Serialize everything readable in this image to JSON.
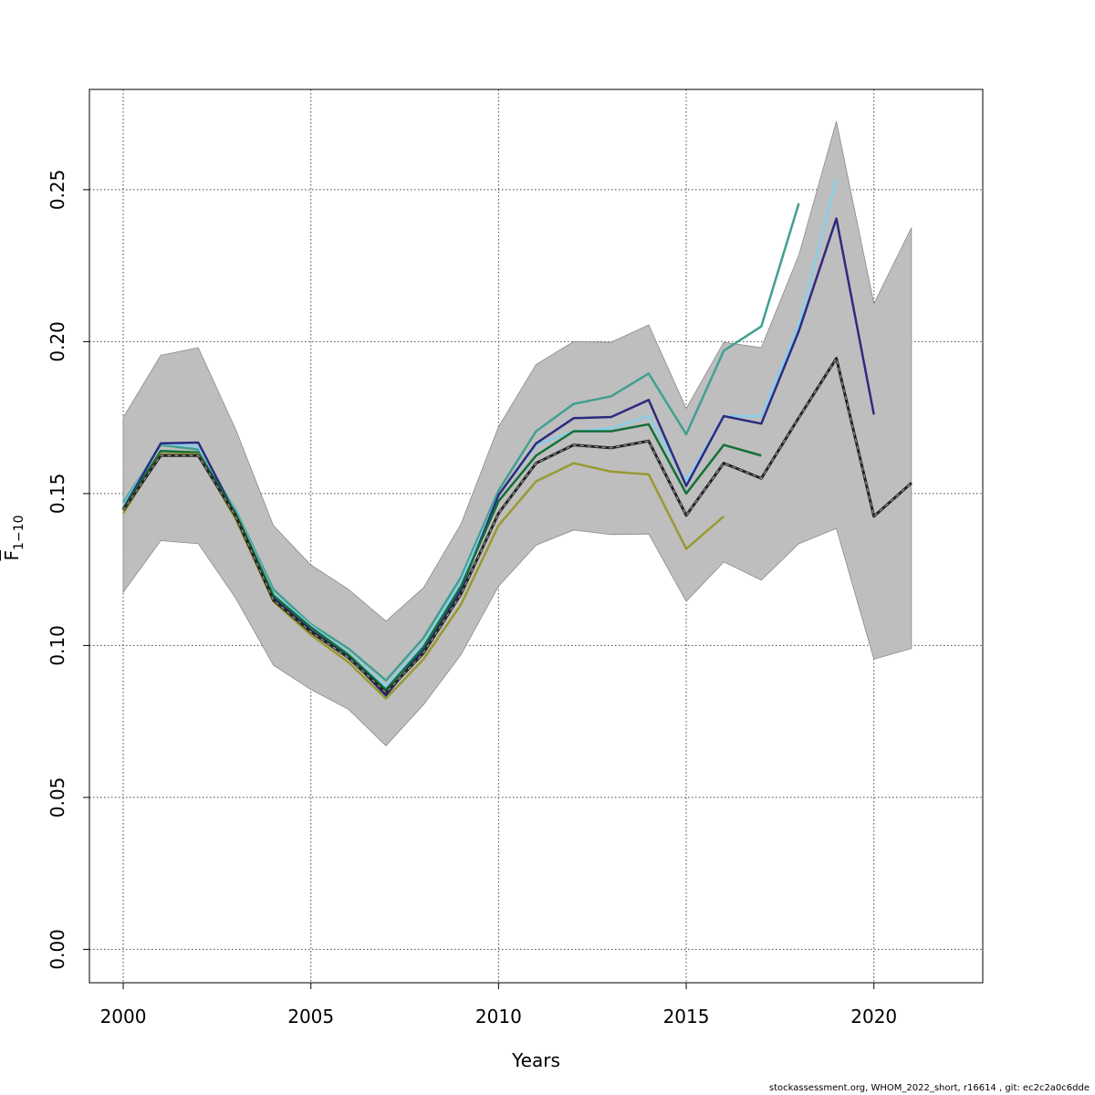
{
  "chart_data": {
    "type": "line",
    "title": "",
    "xlabel": "Years",
    "ylabel_main": "F",
    "ylabel_sub": "1−10",
    "xlim": [
      1999.1,
      2022.9
    ],
    "ylim": [
      -0.011,
      0.283
    ],
    "x_ticks": [
      2000,
      2005,
      2010,
      2015,
      2020
    ],
    "x_tick_labels": [
      "2000",
      "2005",
      "2010",
      "2015",
      "2020"
    ],
    "y_ticks": [
      0.0,
      0.05,
      0.1,
      0.15,
      0.2,
      0.25
    ],
    "y_tick_labels": [
      "0.00",
      "0.05",
      "0.10",
      "0.15",
      "0.20",
      "0.25"
    ],
    "grid": true,
    "band": {
      "color": "#bebebe",
      "x": [
        2000,
        2001,
        2002,
        2003,
        2004,
        2005,
        2006,
        2007,
        2008,
        2009,
        2010,
        2011,
        2012,
        2013,
        2014,
        2015,
        2016,
        2017,
        2018,
        2019,
        2020,
        2021
      ],
      "upper": [
        0.175,
        0.1955,
        0.198,
        0.171,
        0.1395,
        0.1265,
        0.1185,
        0.108,
        0.119,
        0.14,
        0.172,
        0.1925,
        0.2,
        0.1998,
        0.2055,
        0.178,
        0.1998,
        0.198,
        0.2285,
        0.2725,
        0.2125,
        0.2375
      ],
      "lower": [
        0.1175,
        0.1345,
        0.1335,
        0.1155,
        0.0935,
        0.0855,
        0.079,
        0.067,
        0.0805,
        0.097,
        0.1195,
        0.133,
        0.138,
        0.1365,
        0.1367,
        0.1145,
        0.1275,
        0.1215,
        0.1335,
        0.1385,
        0.0955,
        0.099
      ]
    },
    "series": [
      {
        "color": "#40a090",
        "x": [
          2000,
          2001,
          2002,
          2003,
          2004,
          2005,
          2006,
          2007,
          2008,
          2009,
          2010,
          2011,
          2012,
          2013,
          2014,
          2015,
          2016,
          2017,
          2018
        ],
        "values": [
          0.147,
          0.166,
          0.1645,
          0.1445,
          0.1185,
          0.107,
          0.099,
          0.0885,
          0.1025,
          0.1225,
          0.151,
          0.1705,
          0.1795,
          0.182,
          0.1895,
          0.1695,
          0.197,
          0.205,
          0.2455
        ]
      },
      {
        "color": "#87ceeb",
        "x": [
          2000,
          2001,
          2002,
          2003,
          2004,
          2005,
          2006,
          2007,
          2008,
          2009,
          2010,
          2011,
          2012,
          2013,
          2014,
          2015,
          2016,
          2017,
          2018,
          2019
        ],
        "values": [
          0.146,
          0.1665,
          0.1655,
          0.144,
          0.117,
          0.1065,
          0.0975,
          0.0865,
          0.1005,
          0.121,
          0.1495,
          0.166,
          0.1705,
          0.1715,
          0.1755,
          0.154,
          0.1755,
          0.1755,
          0.2055,
          0.2535
        ]
      },
      {
        "color": "#2d2a80",
        "x": [
          2000,
          2001,
          2002,
          2003,
          2004,
          2005,
          2006,
          2007,
          2008,
          2009,
          2010,
          2011,
          2012,
          2013,
          2014,
          2015,
          2016,
          2017,
          2018,
          2019,
          2020
        ],
        "values": [
          0.145,
          0.1665,
          0.1668,
          0.143,
          0.116,
          0.105,
          0.0965,
          0.0835,
          0.099,
          0.1185,
          0.1495,
          0.1665,
          0.1748,
          0.1752,
          0.1808,
          0.1525,
          0.1755,
          0.173,
          0.2035,
          0.2405,
          0.176
        ]
      },
      {
        "color": "#137038",
        "x": [
          2000,
          2001,
          2002,
          2003,
          2004,
          2005,
          2006,
          2007,
          2008,
          2009,
          2010,
          2011,
          2012,
          2013,
          2014,
          2015,
          2016,
          2017
        ],
        "values": [
          0.145,
          0.164,
          0.1635,
          0.1435,
          0.1165,
          0.106,
          0.097,
          0.0855,
          0.0995,
          0.1195,
          0.1475,
          0.1625,
          0.1705,
          0.1705,
          0.1728,
          0.15,
          0.166,
          0.1625
        ]
      },
      {
        "color": "#999933",
        "x": [
          2000,
          2001,
          2002,
          2003,
          2004,
          2005,
          2006,
          2007,
          2008,
          2009,
          2010,
          2011,
          2012,
          2013,
          2014,
          2015,
          2016
        ],
        "values": [
          0.1435,
          0.163,
          0.163,
          0.1415,
          0.1145,
          0.1035,
          0.0945,
          0.0825,
          0.0955,
          0.1135,
          0.1395,
          0.154,
          0.16,
          0.1572,
          0.1563,
          0.1318,
          0.1425
        ]
      },
      {
        "color": "#222222",
        "dashed": true,
        "x": [
          2000,
          2001,
          2002,
          2003,
          2004,
          2005,
          2006,
          2007,
          2008,
          2009,
          2010,
          2011,
          2012,
          2013,
          2014,
          2015,
          2016,
          2017,
          2018,
          2019,
          2020,
          2021
        ],
        "values": [
          0.1445,
          0.1625,
          0.1625,
          0.1425,
          0.115,
          0.1045,
          0.096,
          0.0845,
          0.0975,
          0.117,
          0.1435,
          0.16,
          0.166,
          0.165,
          0.1673,
          0.1428,
          0.16,
          0.155,
          0.175,
          0.1945,
          0.1425,
          0.1535
        ]
      }
    ]
  },
  "footer": "stockassessment.org, WHOM_2022_short, r16614 , git: ec2c2a0c6dde"
}
